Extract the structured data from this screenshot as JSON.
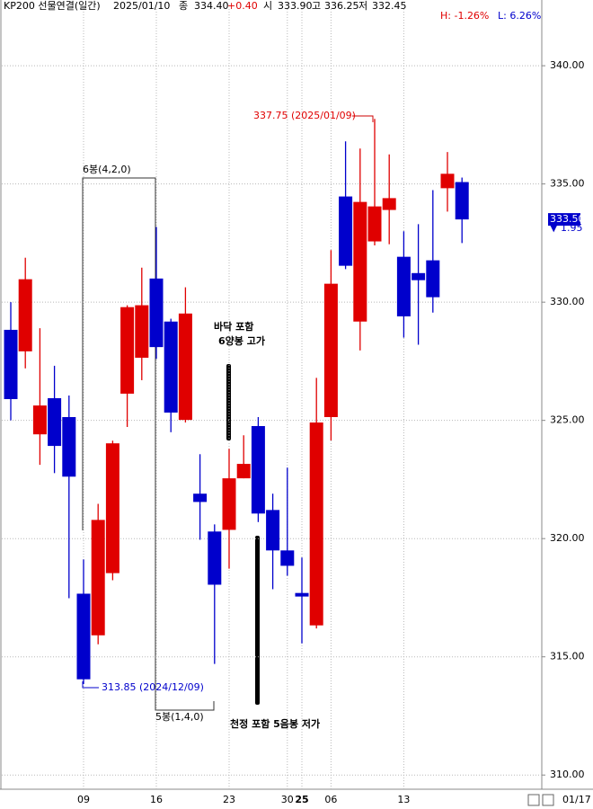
{
  "chart_data": {
    "type": "candlestick",
    "header": {
      "title": "KP200 선물연결(일간)",
      "date": "2025/01/10",
      "close_label": "종",
      "close": "334.40",
      "change": "+0.40",
      "open_label": "시",
      "open": "333.90",
      "high_label": "고",
      "high": "336.25",
      "low_label": "저",
      "low": "332.45"
    },
    "high_pct": "H: -1.26%",
    "low_pct": "L: 6.26%",
    "categories": [
      null,
      null,
      null,
      null,
      null,
      "09",
      null,
      null,
      null,
      null,
      "16",
      null,
      null,
      null,
      null,
      "23",
      null,
      null,
      null,
      "30",
      "25",
      null,
      "06",
      null,
      null,
      null,
      null,
      "13",
      null,
      null,
      null,
      null
    ],
    "open": [
      328.83,
      327.92,
      324.41,
      325.94,
      325.14,
      317.67,
      315.91,
      318.54,
      326.13,
      327.65,
      331.0,
      329.18,
      325.02,
      321.9,
      320.3,
      320.37,
      322.55,
      324.76,
      321.21,
      319.5,
      317.7,
      316.33,
      325.14,
      334.47,
      329.18,
      332.57,
      333.9,
      331.92,
      331.23,
      331.77,
      334.82,
      335.08
    ],
    "high": [
      330.0,
      331.88,
      328.9,
      327.31,
      326.05,
      319.12,
      321.47,
      324.14,
      329.87,
      331.46,
      333.18,
      329.3,
      330.63,
      323.57,
      320.6,
      323.8,
      324.37,
      325.14,
      321.9,
      323.0,
      319.2,
      326.8,
      332.2,
      336.8,
      336.5,
      337.75,
      336.25,
      333.0,
      333.3,
      334.74,
      336.35,
      335.27
    ],
    "low": [
      325.0,
      327.2,
      323.12,
      322.77,
      317.48,
      313.85,
      315.53,
      318.24,
      324.72,
      326.7,
      327.6,
      324.5,
      324.91,
      319.95,
      314.7,
      318.73,
      322.55,
      320.7,
      317.86,
      318.43,
      315.57,
      316.2,
      324.15,
      331.4,
      327.96,
      332.4,
      332.45,
      328.5,
      328.2,
      329.56,
      333.83,
      332.5
    ],
    "close": [
      325.9,
      330.97,
      325.63,
      323.92,
      322.62,
      314.05,
      320.79,
      324.03,
      329.79,
      329.87,
      328.1,
      325.33,
      329.52,
      321.55,
      318.05,
      322.55,
      323.16,
      321.06,
      319.5,
      318.85,
      317.55,
      324.91,
      330.78,
      331.54,
      334.24,
      334.05,
      334.4,
      329.4,
      330.93,
      330.21,
      335.43,
      333.5
    ],
    "up_color": "#e00000",
    "down_color": "#0000cc",
    "ylim": [
      309.4,
      342.4
    ],
    "yticks": [
      {
        "value": 310,
        "label": "310.00"
      },
      {
        "value": 315,
        "label": "315.00"
      },
      {
        "value": 320,
        "label": "320.00"
      },
      {
        "value": 325,
        "label": "325.00"
      },
      {
        "value": 330,
        "label": "330.00"
      },
      {
        "value": 335,
        "label": "335.00"
      },
      {
        "value": 340,
        "label": "340.00"
      }
    ],
    "grid": true,
    "current_price": {
      "value": 333.5,
      "label": "333.50"
    },
    "current_change": "▼ 1.95",
    "max_note": "337.75 (2025/01/09)",
    "min_note": "313.85 (2024/12/09)",
    "bracket_top": "6봉(4,2,0)",
    "bracket_bottom": "5봉(1,4,0)",
    "note_bottom_1": "바닥 포함",
    "note_bottom_2": "6양봉 고가",
    "note_top": "천정 포함 5음봉 저가",
    "end_date": "01/17"
  }
}
